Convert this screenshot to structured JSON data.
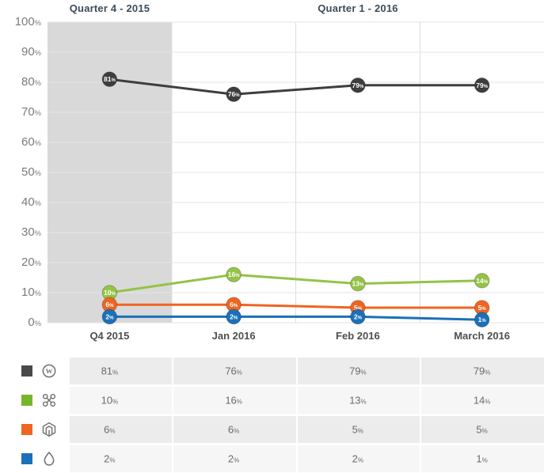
{
  "headers": {
    "q4": "Quarter 4 - 2015",
    "q1": "Quarter 1 - 2016"
  },
  "labels": {
    "percent": "%"
  },
  "chart_data": {
    "type": "line",
    "title": "",
    "categories": [
      "Q4 2015",
      "Jan 2016",
      "Feb 2016",
      "March 2016"
    ],
    "y_ticks": [
      0,
      10,
      20,
      30,
      40,
      50,
      60,
      70,
      80,
      90,
      100
    ],
    "ylim": [
      0,
      100
    ],
    "grid": true,
    "highlight_column": 0,
    "highlight_bg": "#d9d9d9",
    "series": [
      {
        "name": "WordPress",
        "icon": "wordpress-icon",
        "color": "#3e3e3e",
        "swatch": "#4a4a4a",
        "values": [
          81,
          76,
          79,
          79
        ]
      },
      {
        "name": "Joomla",
        "icon": "joomla-icon",
        "color": "#94c347",
        "swatch": "#76b62a",
        "values": [
          10,
          16,
          13,
          14
        ]
      },
      {
        "name": "Magento",
        "icon": "magento-icon",
        "color": "#ef6522",
        "swatch": "#ef6522",
        "values": [
          6,
          6,
          5,
          5
        ]
      },
      {
        "name": "Drupal",
        "icon": "drupal-icon",
        "color": "#1b70b9",
        "swatch": "#1b70b9",
        "values": [
          2,
          2,
          2,
          1
        ]
      }
    ]
  }
}
